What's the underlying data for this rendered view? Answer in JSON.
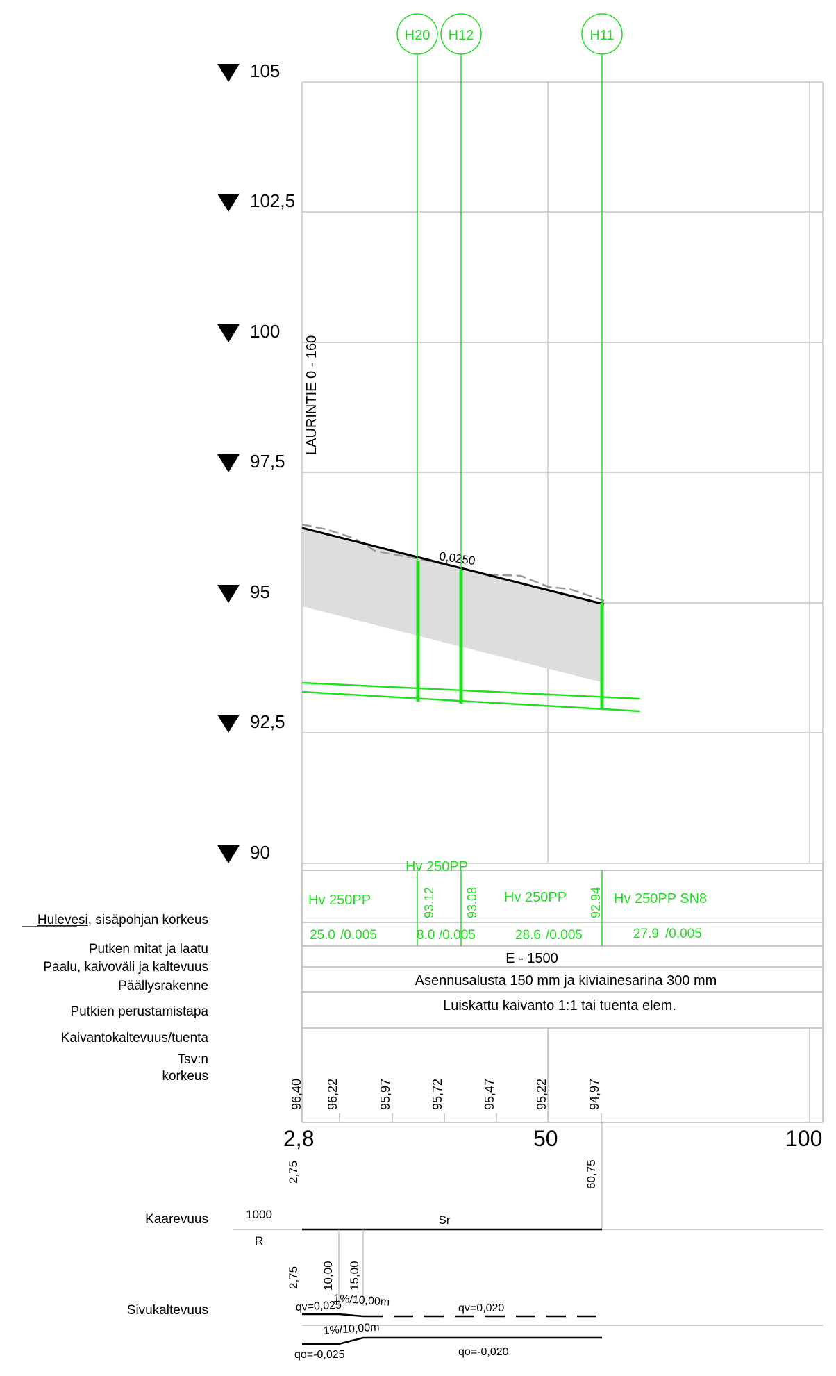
{
  "levels": {
    "l105": "105",
    "l1025": "102,5",
    "l100": "100",
    "l975": "97,5",
    "l95": "95",
    "l925": "92,5",
    "l90": "90"
  },
  "wells": {
    "h20": "H20",
    "h12": "H12",
    "h11": "H11"
  },
  "section_title": "LAURINTIE 0 - 160",
  "slope_label": "0,0250",
  "pipe_rows": {
    "seg1_type": "Hv 250PP",
    "seg2_type": "Hv 250PP",
    "seg3_type": "Hv 250PP",
    "seg4_type": "Hv 250PP SN8",
    "seg1_len": "25.0",
    "seg1_slope": "/0.005",
    "seg2_len": "8.0",
    "seg2_slope": "/0.005",
    "seg3_len": "28.6",
    "seg3_slope": "/0.005",
    "seg4_len": "27.9",
    "seg4_slope": "/0.005",
    "inv_h20": "93.12",
    "inv_h12": "93.08",
    "inv_h11": "92.94",
    "pile": "E - 1500",
    "base": "Asennusalusta 150 mm ja kiviainesarina 300 mm",
    "trench": "Luiskattu kaivanto 1:1 tai tuenta elem."
  },
  "row_labels": {
    "hulevesi_word": "Hulevesi",
    "hulevesi_rest": ", sisäpohjan korkeus",
    "dims": "Putken mitat ja laatu",
    "pile": "Paalu, kaivoväli ja kaltevuus",
    "surface": "Päällysrakenne",
    "foundation": "Putkien perustamistapa",
    "trench": "Kaivantokaltevuus/tuenta",
    "tsv1": "Tsv:n",
    "tsv2": "korkeus",
    "curv": "Kaarevuus",
    "side": "Sivukaltevuus"
  },
  "elevations": {
    "e1": "96,40",
    "e2": "96,22",
    "e3": "95,97",
    "e4": "95,72",
    "e5": "95,47",
    "e6": "95,22",
    "e7": "94,97"
  },
  "stations": {
    "s0": "2,8",
    "s50": "50",
    "s100": "100"
  },
  "alignment": {
    "start": "2,75",
    "end": "60,75",
    "curv_top": "1000",
    "curv_bottom": "R",
    "curv_label": "Sr",
    "start2": "2,75",
    "st10": "10,00",
    "st15": "15,00",
    "grad_top": "1%/10,00m",
    "grad_bottom": "1%/10,00m",
    "qv1": "qv=0,025",
    "qv2": "qv=0,020",
    "qo1": "qo=-0,025",
    "qo2": "qo=-0,020"
  },
  "colors": {
    "pipe_green": "#22dd22",
    "grid": "#bbbbbb",
    "ground_fill": "#dddddd"
  }
}
